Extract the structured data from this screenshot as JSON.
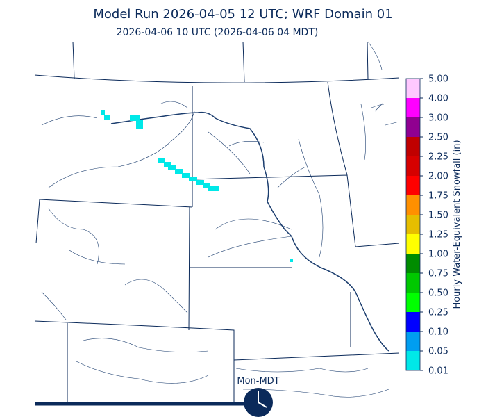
{
  "header": {
    "title": "Model Run 2026-04-05 12 UTC; WRF Domain 01",
    "subtitle": "2026-04-06 10 UTC  (2026-04-06 04 MDT)"
  },
  "colorbar": {
    "title": "Hourly Water-Equivalent Snowfall (in)",
    "labels": [
      "0.01",
      "0.05",
      "0.10",
      "0.25",
      "0.50",
      "0.75",
      "1.00",
      "1.25",
      "1.50",
      "1.75",
      "2.00",
      "2.25",
      "2.50",
      "3.00",
      "4.00",
      "5.00"
    ],
    "colors": [
      "#00e8e8",
      "#009ef0",
      "#0000ff",
      "#00ff00",
      "#00c800",
      "#008c00",
      "#ffff00",
      "#e6be00",
      "#ff9000",
      "#ff0000",
      "#d60000",
      "#c00000",
      "#900090",
      "#ff00ff",
      "#ffc8ff"
    ]
  },
  "clock": {
    "label": "Mon-MDT"
  }
}
